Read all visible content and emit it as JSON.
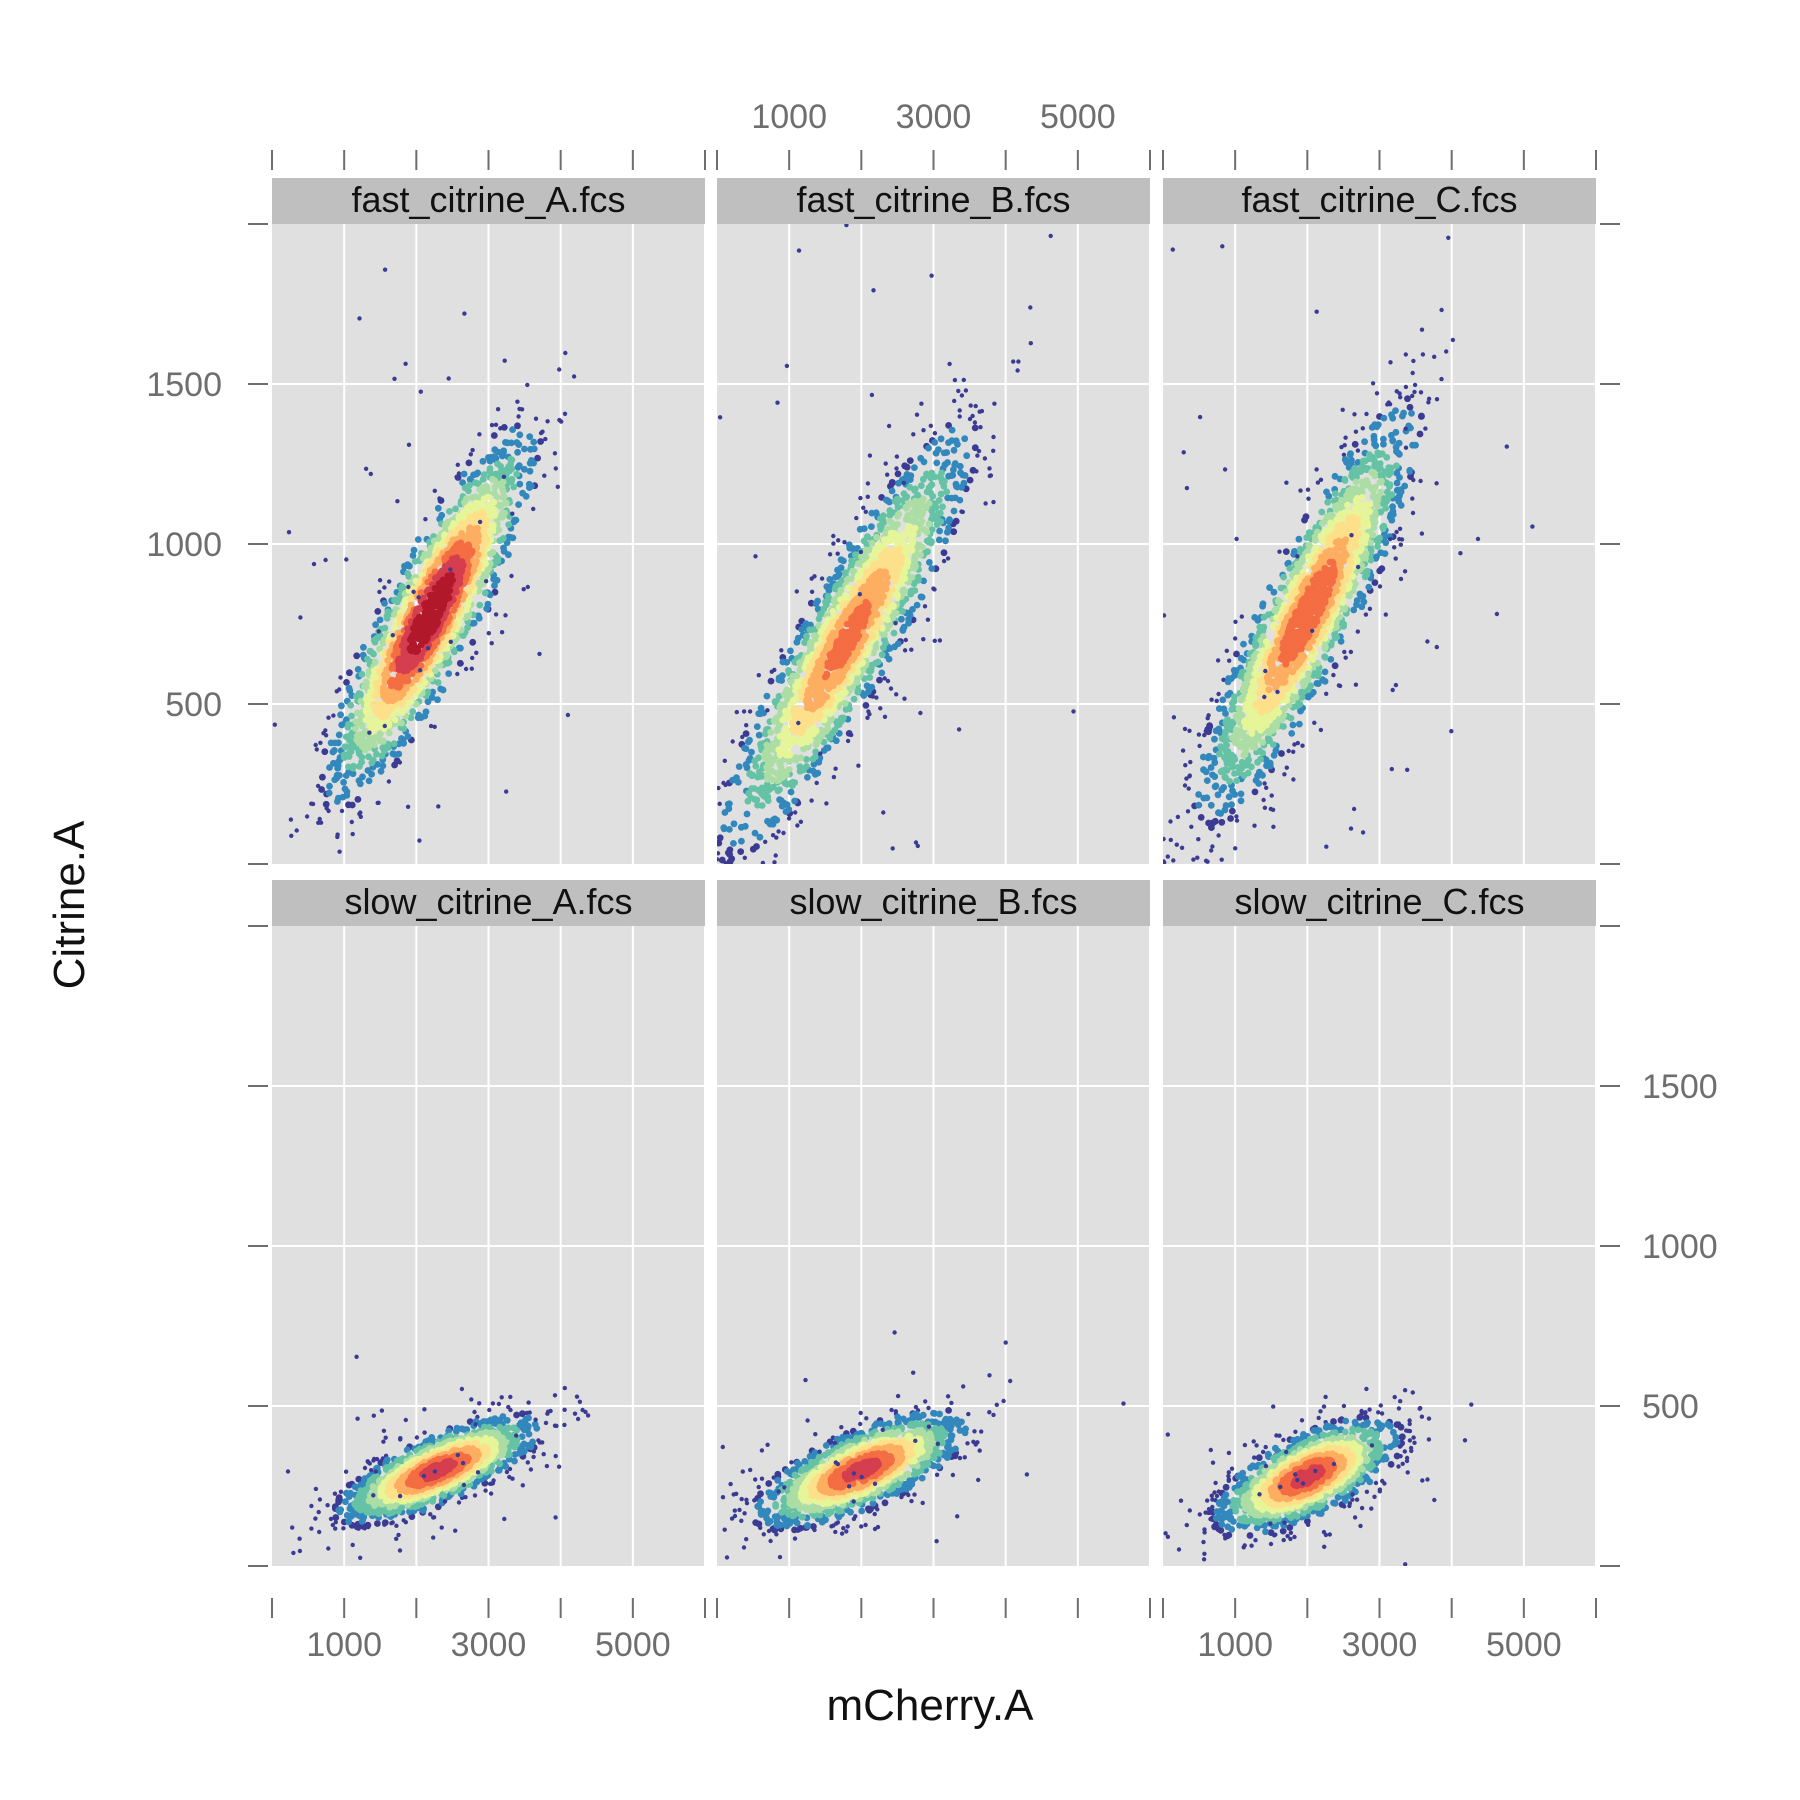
{
  "chart_data": {
    "type": "scatter",
    "xlabel": "mCherry.A",
    "ylabel": "Citrine.A",
    "xlim": [
      0,
      6000
    ],
    "ylim": [
      0,
      2000
    ],
    "x_ticks": [
      1000,
      2000,
      3000,
      4000,
      5000,
      6000
    ],
    "x_tick_labels": [
      "1000",
      "3000",
      "5000"
    ],
    "x_labeled_ticks": [
      1000,
      3000,
      5000
    ],
    "y_ticks": [
      500,
      1000,
      1500
    ],
    "y_tick_labels": [
      "500",
      "1000",
      "1500"
    ],
    "grid": true,
    "layout": "2 rows x 3 columns lattice",
    "density_colormap": [
      "#3b3b94",
      "#3288bd",
      "#66c2a5",
      "#abdda4",
      "#e6f598",
      "#fee08b",
      "#fdae61",
      "#f46d43",
      "#d53e4f",
      "#b2182b"
    ],
    "panels": [
      {
        "title": "fast_citrine_A.fcs",
        "center": [
          2200,
          780
        ],
        "sx": 620,
        "sy": 250,
        "corr": 0.86,
        "peak_frac": 1.0,
        "n": 2000,
        "outliers": 60
      },
      {
        "title": "fast_citrine_B.fcs",
        "center": [
          1800,
          700
        ],
        "sx": 780,
        "sy": 300,
        "corr": 0.9,
        "peak_frac": 0.75,
        "n": 2000,
        "outliers": 60
      },
      {
        "title": "fast_citrine_C.fcs",
        "center": [
          2000,
          780
        ],
        "sx": 680,
        "sy": 290,
        "corr": 0.88,
        "peak_frac": 0.8,
        "n": 2000,
        "outliers": 60
      },
      {
        "title": "slow_citrine_A.fcs",
        "center": [
          2300,
          300
        ],
        "sx": 620,
        "sy": 75,
        "corr": 0.75,
        "peak_frac": 0.85,
        "n": 1600,
        "outliers": 40
      },
      {
        "title": "slow_citrine_B.fcs",
        "center": [
          2000,
          300
        ],
        "sx": 640,
        "sy": 80,
        "corr": 0.7,
        "peak_frac": 0.85,
        "n": 1600,
        "outliers": 40
      },
      {
        "title": "slow_citrine_C.fcs",
        "center": [
          2000,
          280
        ],
        "sx": 560,
        "sy": 80,
        "corr": 0.65,
        "peak_frac": 0.85,
        "n": 1600,
        "outliers": 40
      }
    ]
  }
}
